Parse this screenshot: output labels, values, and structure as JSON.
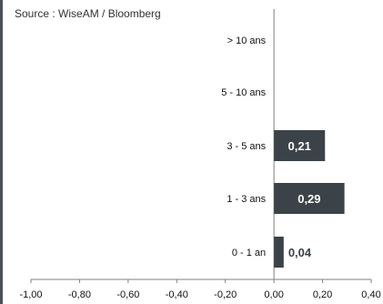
{
  "source_note": "Source : WiseAM / Bloomberg",
  "colors": {
    "bar": "#3b4348",
    "frame": "#4a5055",
    "axis": "#7f7f7f",
    "text": "#111111",
    "bar_label": "#ffffff"
  },
  "chart_data": {
    "type": "bar",
    "orientation": "horizontal",
    "categories": [
      "> 10 ans",
      "5 - 10 ans",
      "3 - 5 ans",
      "1 - 3 ans",
      "0 - 1 an"
    ],
    "values": [
      0,
      0,
      0.21,
      0.29,
      0.04
    ],
    "value_labels": [
      "",
      "",
      "0,21",
      "0,29",
      "0,04"
    ],
    "xlim": [
      -1.0,
      0.4
    ],
    "x_ticks": [
      -1.0,
      -0.8,
      -0.6,
      -0.4,
      -0.2,
      0.0,
      0.2,
      0.4
    ],
    "x_tick_labels": [
      "-1,00",
      "-0,80",
      "-0,60",
      "-0,40",
      "-0,20",
      "0,00",
      "0,20",
      "0,40"
    ],
    "title": "",
    "xlabel": "",
    "ylabel": "",
    "grid": false,
    "legend": "none"
  }
}
